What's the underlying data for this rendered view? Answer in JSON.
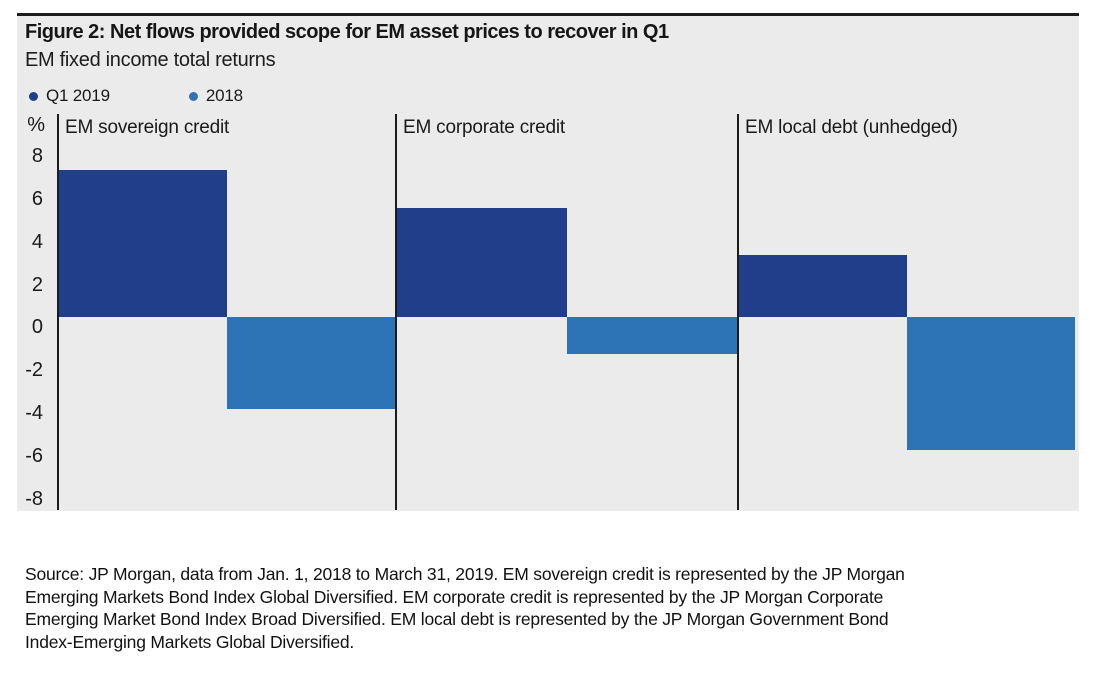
{
  "chart_data": {
    "type": "bar",
    "title": "Figure 2: Net flows provided scope for EM asset prices to recover in Q1",
    "subtitle": "EM fixed income total returns",
    "ylabel": "%",
    "yticks": [
      8,
      6,
      4,
      2,
      0,
      -2,
      -4,
      -6,
      -8
    ],
    "ylim": [
      -9.0,
      9.5
    ],
    "grid": false,
    "legend_position": "top-left",
    "background_color": "#ebebeb",
    "axis_color": "#1c1c1c",
    "categories": [
      "EM sovereign credit",
      "EM corporate credit",
      "EM local debt (unhedged)"
    ],
    "series": [
      {
        "name": "Q1 2019",
        "color": "#203e8a",
        "values": [
          6.9,
          5.1,
          2.9
        ]
      },
      {
        "name": "2018",
        "color": "#2d74b6",
        "values": [
          -4.3,
          -1.7,
          -6.2
        ]
      }
    ]
  },
  "footer": {
    "source_lines": [
      "Source: JP Morgan, data from Jan. 1, 2018 to March 31, 2019. EM sovereign credit is represented by the JP Morgan",
      "Emerging Markets Bond Index Global Diversified. EM corporate credit is represented by the JP Morgan Corporate",
      "Emerging Market Bond Index Broad Diversified. EM local debt is represented by the JP Morgan Government Bond",
      "Index-Emerging Markets Global Diversified."
    ]
  }
}
